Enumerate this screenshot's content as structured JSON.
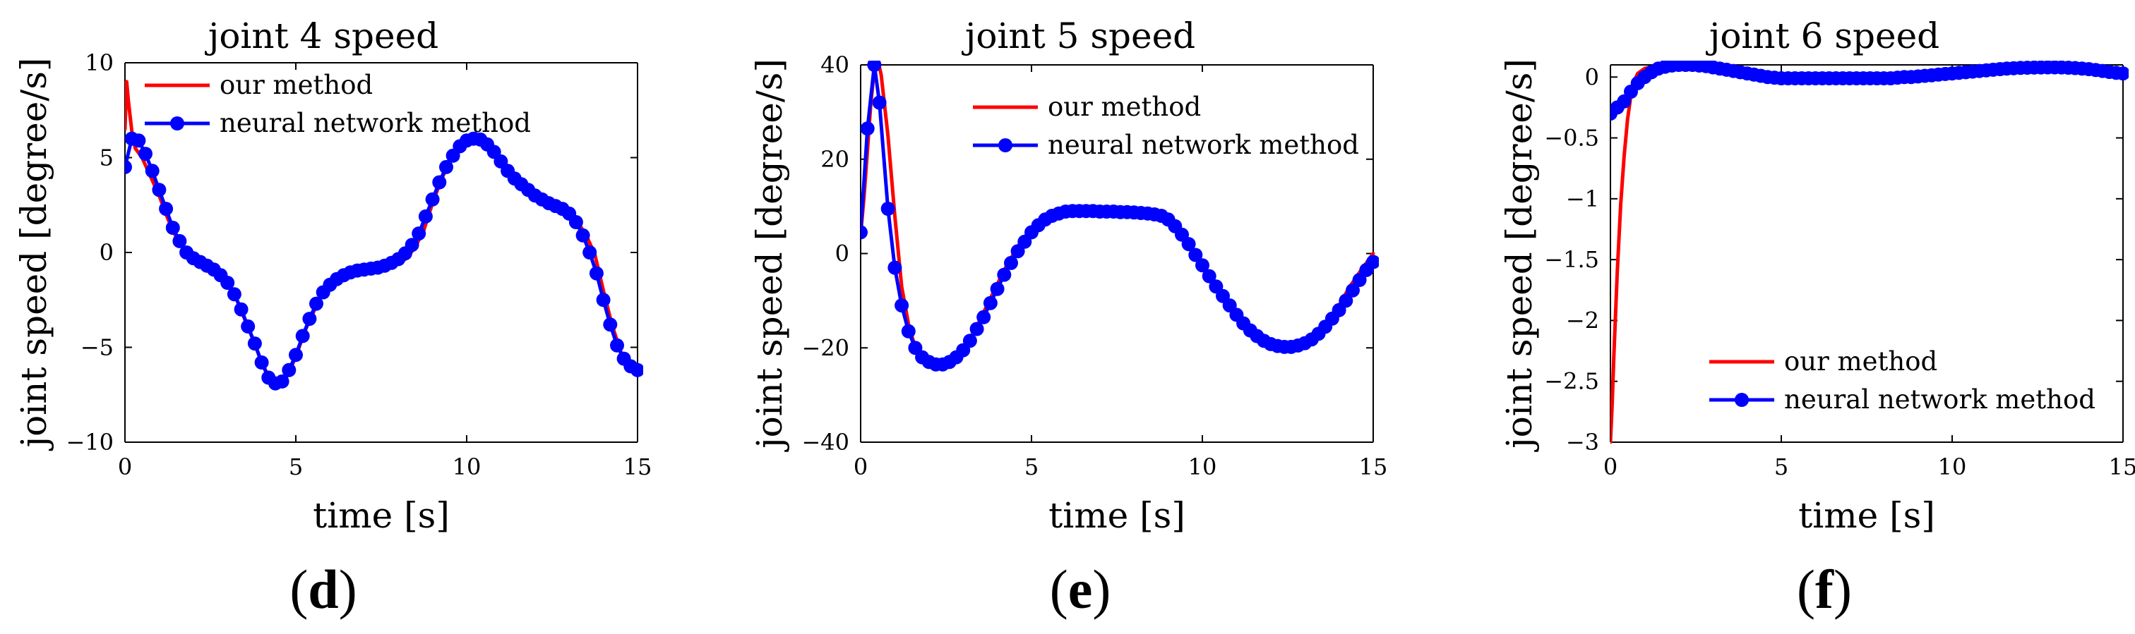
{
  "chart_data": [
    {
      "type": "line",
      "title": "joint 4 speed",
      "panel": "d",
      "xlabel": "time [s]",
      "ylabel": "joint speed [degree/s]",
      "xlim": [
        0,
        15
      ],
      "ylim": [
        -10,
        10
      ],
      "xticks": [
        0,
        5,
        10,
        15
      ],
      "yticks": [
        -10,
        -5,
        0,
        5,
        10
      ],
      "ytick_labels": [
        "−10",
        "−5",
        "0",
        "5",
        "10"
      ],
      "legend": "top-left",
      "series": [
        {
          "name": "our method",
          "color": "#ff0000",
          "marker": false,
          "x": [
            0,
            0.05,
            0.1,
            0.2,
            0.3,
            0.5,
            0.75,
            1.0,
            1.25,
            1.5,
            1.75,
            2.0,
            2.25,
            2.5,
            2.75,
            3.0,
            3.25,
            3.5,
            3.75,
            4.0,
            4.25,
            4.5,
            4.75,
            5.0,
            5.25,
            5.5,
            5.75,
            6.0,
            6.25,
            6.5,
            6.75,
            7.0,
            7.25,
            7.5,
            7.75,
            8.0,
            8.25,
            8.5,
            8.75,
            9.0,
            9.25,
            9.5,
            9.75,
            10.0,
            10.25,
            10.5,
            10.75,
            11.0,
            11.25,
            11.5,
            11.75,
            12.0,
            12.25,
            12.5,
            12.75,
            13.0,
            13.25,
            13.5,
            13.75,
            14.0,
            14.25,
            14.5,
            14.75,
            15.0
          ],
          "y": [
            6.5,
            9.0,
            8.0,
            6.4,
            5.5,
            5.0,
            4.0,
            3.0,
            1.8,
            0.8,
            0.2,
            -0.2,
            -0.5,
            -0.8,
            -1.2,
            -1.6,
            -2.4,
            -3.5,
            -4.6,
            -5.8,
            -6.7,
            -7.0,
            -6.5,
            -5.5,
            -4.2,
            -3.2,
            -2.3,
            -1.8,
            -1.5,
            -1.3,
            -1.1,
            -1.0,
            -0.95,
            -0.9,
            -0.8,
            -0.6,
            -0.3,
            0.3,
            1.2,
            2.6,
            3.8,
            4.8,
            5.5,
            5.9,
            6.0,
            5.9,
            5.5,
            4.9,
            4.3,
            3.9,
            3.5,
            3.2,
            2.9,
            2.7,
            2.5,
            2.2,
            1.6,
            0.9,
            -0.1,
            -2.0,
            -3.8,
            -5.2,
            -6.0,
            -6.3
          ]
        },
        {
          "name": "neural network method",
          "color": "#0000ff",
          "marker": true,
          "x": [
            0,
            0.2,
            0.4,
            0.6,
            0.8,
            1.0,
            1.2,
            1.4,
            1.6,
            1.8,
            2.0,
            2.2,
            2.4,
            2.6,
            2.8,
            3.0,
            3.2,
            3.4,
            3.6,
            3.8,
            4.0,
            4.2,
            4.4,
            4.6,
            4.8,
            5.0,
            5.2,
            5.4,
            5.6,
            5.8,
            6.0,
            6.2,
            6.4,
            6.6,
            6.8,
            7.0,
            7.2,
            7.4,
            7.6,
            7.8,
            8.0,
            8.2,
            8.4,
            8.6,
            8.8,
            9.0,
            9.2,
            9.4,
            9.6,
            9.8,
            10.0,
            10.2,
            10.4,
            10.6,
            10.8,
            11.0,
            11.2,
            11.4,
            11.6,
            11.8,
            12.0,
            12.2,
            12.4,
            12.6,
            12.8,
            13.0,
            13.2,
            13.4,
            13.6,
            13.8,
            14.0,
            14.2,
            14.4,
            14.6,
            14.8,
            15.0
          ],
          "y": [
            4.5,
            6.0,
            5.9,
            5.2,
            4.3,
            3.3,
            2.3,
            1.3,
            0.6,
            0.0,
            -0.3,
            -0.5,
            -0.7,
            -0.9,
            -1.2,
            -1.6,
            -2.2,
            -3.0,
            -3.9,
            -4.8,
            -5.8,
            -6.6,
            -6.9,
            -6.8,
            -6.2,
            -5.4,
            -4.4,
            -3.5,
            -2.7,
            -2.1,
            -1.7,
            -1.4,
            -1.2,
            -1.05,
            -0.95,
            -0.9,
            -0.85,
            -0.8,
            -0.7,
            -0.55,
            -0.35,
            -0.05,
            0.4,
            1.0,
            1.9,
            2.8,
            3.7,
            4.5,
            5.1,
            5.6,
            5.9,
            6.0,
            5.95,
            5.7,
            5.3,
            4.8,
            4.3,
            3.9,
            3.6,
            3.3,
            3.0,
            2.8,
            2.6,
            2.45,
            2.3,
            2.05,
            1.6,
            0.9,
            0.0,
            -1.1,
            -2.5,
            -3.8,
            -4.9,
            -5.6,
            -6.0,
            -6.2
          ]
        }
      ]
    },
    {
      "type": "line",
      "title": "joint 5 speed",
      "panel": "e",
      "xlabel": "time [s]",
      "ylabel": "joint speed [degree/s]",
      "xlim": [
        0,
        15
      ],
      "ylim": [
        -40,
        40
      ],
      "xticks": [
        0,
        5,
        10,
        15
      ],
      "yticks": [
        -40,
        -20,
        0,
        20,
        40
      ],
      "ytick_labels": [
        "−40",
        "−20",
        "0",
        "20",
        "40"
      ],
      "legend": "top-right",
      "series": [
        {
          "name": "our method",
          "color": "#ff0000",
          "marker": false,
          "x": [
            0,
            0.1,
            0.2,
            0.3,
            0.4,
            0.5,
            0.6,
            0.8,
            1.0,
            1.2,
            1.4,
            1.6,
            1.8,
            2.0,
            2.2,
            2.4,
            2.6,
            2.8,
            3.0,
            3.2,
            3.4,
            3.6,
            3.8,
            4.0,
            4.2,
            4.4,
            4.6,
            4.8,
            5.0,
            5.3,
            5.6,
            5.9,
            6.2,
            6.5,
            6.8,
            7.1,
            7.4,
            7.7,
            8.0,
            8.3,
            8.6,
            8.9,
            9.2,
            9.5,
            9.8,
            10.1,
            10.4,
            10.7,
            11.0,
            11.3,
            11.6,
            11.9,
            12.2,
            12.5,
            12.8,
            13.1,
            13.4,
            13.7,
            14.0,
            14.3,
            14.6,
            15.0
          ],
          "y": [
            4,
            12,
            22,
            32,
            39,
            41,
            38,
            25,
            8,
            -7,
            -15,
            -20,
            -22.5,
            -23.5,
            -23.8,
            -23.5,
            -22.8,
            -21.5,
            -20,
            -18,
            -15.5,
            -12.5,
            -9.5,
            -6.5,
            -3.5,
            -1,
            1.5,
            3.5,
            5.2,
            7,
            8.2,
            8.8,
            9,
            9,
            9,
            8.9,
            8.9,
            8.8,
            8.7,
            8.6,
            8.3,
            7.5,
            5.8,
            3.2,
            0,
            -3.3,
            -6.8,
            -10,
            -13,
            -15.5,
            -17.5,
            -19,
            -19.8,
            -20,
            -19.6,
            -18.5,
            -16.8,
            -14,
            -11,
            -7.2,
            -4,
            0
          ]
        },
        {
          "name": "neural network method",
          "color": "#0000ff",
          "marker": true,
          "x": [
            0,
            0.2,
            0.4,
            0.55,
            0.8,
            1.0,
            1.2,
            1.4,
            1.6,
            1.8,
            2.0,
            2.2,
            2.4,
            2.6,
            2.8,
            3.0,
            3.2,
            3.4,
            3.6,
            3.8,
            4.0,
            4.2,
            4.4,
            4.6,
            4.8,
            5.0,
            5.2,
            5.4,
            5.6,
            5.8,
            6.0,
            6.2,
            6.4,
            6.6,
            6.8,
            7.0,
            7.2,
            7.4,
            7.6,
            7.8,
            8.0,
            8.2,
            8.4,
            8.6,
            8.8,
            9.0,
            9.2,
            9.4,
            9.6,
            9.8,
            10.0,
            10.2,
            10.4,
            10.6,
            10.8,
            11.0,
            11.2,
            11.4,
            11.6,
            11.8,
            12.0,
            12.2,
            12.4,
            12.6,
            12.8,
            13.0,
            13.2,
            13.4,
            13.6,
            13.8,
            14.0,
            14.2,
            14.4,
            14.6,
            14.8,
            15.0
          ],
          "y": [
            4.5,
            26.5,
            40,
            32,
            9.5,
            -3,
            -11,
            -16.5,
            -20,
            -22,
            -23,
            -23.5,
            -23.5,
            -23,
            -22,
            -20.5,
            -18.5,
            -16,
            -13.5,
            -10.5,
            -7.5,
            -4.5,
            -2,
            0.5,
            2.5,
            4.5,
            6,
            7.2,
            8,
            8.5,
            8.9,
            9,
            9,
            9,
            9,
            8.9,
            8.9,
            8.9,
            8.8,
            8.8,
            8.7,
            8.6,
            8.5,
            8.3,
            8,
            7.2,
            5.8,
            4,
            2,
            -0.3,
            -2.5,
            -4.8,
            -7,
            -9,
            -11,
            -13,
            -14.8,
            -16.3,
            -17.5,
            -18.5,
            -19.2,
            -19.6,
            -19.8,
            -19.8,
            -19.5,
            -19,
            -18.2,
            -17,
            -15.5,
            -13.8,
            -12,
            -10,
            -7.8,
            -5.6,
            -3.5,
            -1.8
          ]
        }
      ]
    },
    {
      "type": "line",
      "title": "joint 6 speed",
      "panel": "f",
      "xlabel": "time [s]",
      "ylabel": "joint speed [degree/s]",
      "xlim": [
        0,
        15
      ],
      "ylim": [
        -3,
        0.1
      ],
      "xticks": [
        0,
        5,
        10,
        15
      ],
      "yticks": [
        -3,
        -2.5,
        -2,
        -1.5,
        -1,
        -0.5,
        0
      ],
      "ytick_labels": [
        "−3",
        "−2.5",
        "−2",
        "−1.5",
        "−1",
        "−0.5",
        "0"
      ],
      "legend": "bottom-right",
      "series": [
        {
          "name": "our method",
          "color": "#ff0000",
          "marker": false,
          "x": [
            0,
            0.05,
            0.1,
            0.2,
            0.3,
            0.4,
            0.5,
            0.6,
            0.7,
            0.8,
            1.0,
            1.3,
            1.6,
            2.0,
            2.5,
            3.0,
            4.0,
            5.0,
            6.0,
            7.0,
            8.0,
            9.0,
            10.0,
            11.0,
            12.0,
            13.0,
            14.0,
            15.0
          ],
          "y": [
            -3.0,
            -2.7,
            -2.3,
            -1.6,
            -1.05,
            -0.65,
            -0.35,
            -0.15,
            -0.03,
            0.03,
            0.07,
            0.09,
            0.1,
            0.1,
            0.1,
            0.08,
            0.03,
            0.0,
            -0.01,
            -0.01,
            -0.01,
            0.0,
            0.03,
            0.06,
            0.08,
            0.08,
            0.06,
            0.03
          ]
        },
        {
          "name": "neural network method",
          "color": "#0000ff",
          "marker": true,
          "x": [
            0,
            0.2,
            0.4,
            0.6,
            0.8,
            1.0,
            1.2,
            1.4,
            1.6,
            1.8,
            2.0,
            2.2,
            2.4,
            2.6,
            2.8,
            3.0,
            3.2,
            3.4,
            3.6,
            3.8,
            4.0,
            4.2,
            4.4,
            4.6,
            4.8,
            5.0,
            5.2,
            5.4,
            5.6,
            5.8,
            6.0,
            6.2,
            6.4,
            6.6,
            6.8,
            7.0,
            7.2,
            7.4,
            7.6,
            7.8,
            8.0,
            8.2,
            8.4,
            8.6,
            8.8,
            9.0,
            9.2,
            9.4,
            9.6,
            9.8,
            10.0,
            10.2,
            10.4,
            10.6,
            10.8,
            11.0,
            11.2,
            11.4,
            11.6,
            11.8,
            12.0,
            12.2,
            12.4,
            12.6,
            12.8,
            13.0,
            13.2,
            13.4,
            13.6,
            13.8,
            14.0,
            14.2,
            14.4,
            14.6,
            14.8,
            15.0
          ],
          "y": [
            -0.3,
            -0.25,
            -0.2,
            -0.12,
            -0.05,
            0.0,
            0.04,
            0.07,
            0.085,
            0.095,
            0.1,
            0.1,
            0.1,
            0.095,
            0.09,
            0.08,
            0.07,
            0.06,
            0.05,
            0.04,
            0.03,
            0.02,
            0.01,
            0.0,
            -0.005,
            -0.01,
            -0.01,
            -0.01,
            -0.01,
            -0.01,
            -0.01,
            -0.01,
            -0.01,
            -0.01,
            -0.01,
            -0.01,
            -0.01,
            -0.01,
            -0.01,
            -0.01,
            -0.01,
            -0.01,
            -0.005,
            0.0,
            0.0,
            0.005,
            0.01,
            0.015,
            0.02,
            0.025,
            0.03,
            0.035,
            0.04,
            0.045,
            0.05,
            0.055,
            0.06,
            0.065,
            0.07,
            0.072,
            0.075,
            0.077,
            0.078,
            0.079,
            0.08,
            0.08,
            0.079,
            0.077,
            0.074,
            0.07,
            0.065,
            0.058,
            0.05,
            0.042,
            0.035,
            0.03
          ]
        }
      ]
    }
  ]
}
